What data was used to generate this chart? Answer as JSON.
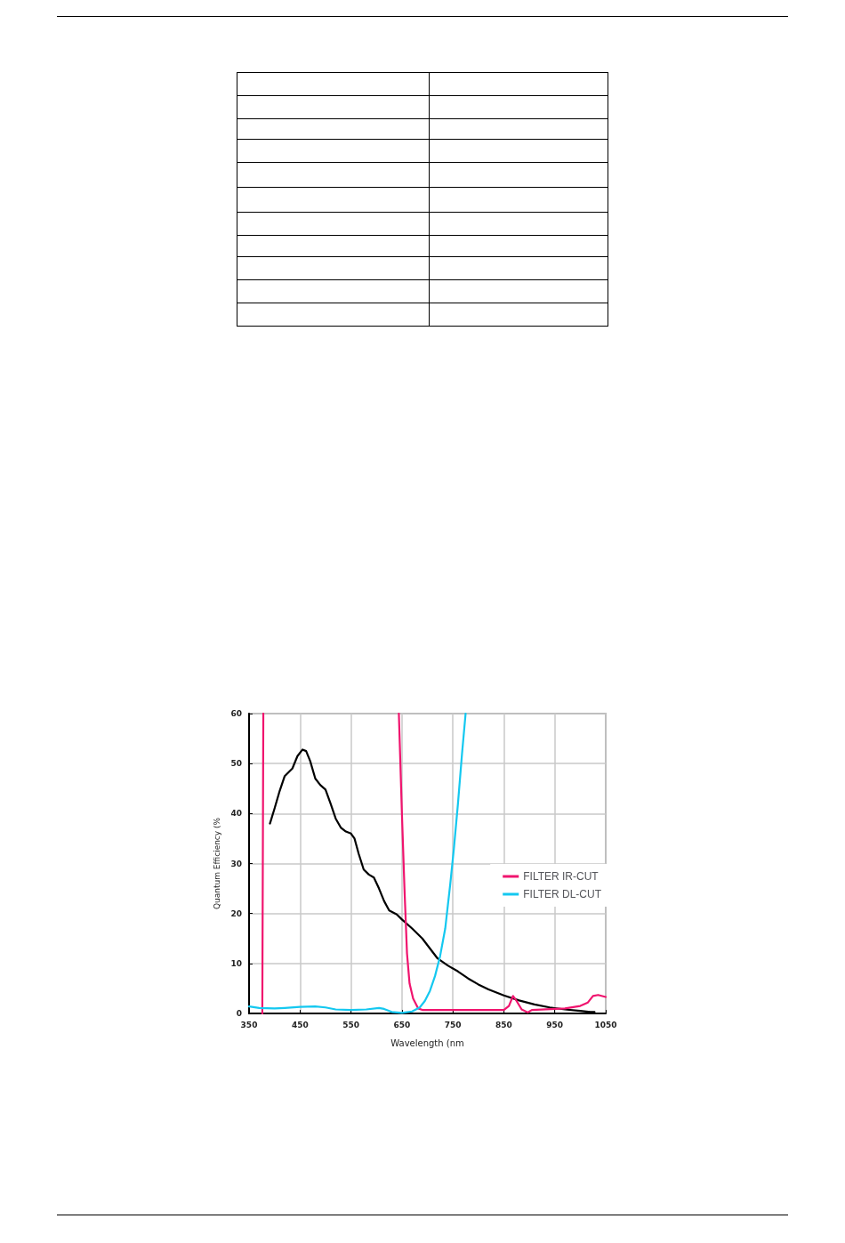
{
  "chart_data": {
    "type": "line",
    "xlabel": "Wavelength (nm",
    "ylabel": "Quantum Efficiency (%",
    "xlim": [
      350,
      1050
    ],
    "xticks": [
      350,
      450,
      550,
      650,
      750,
      850,
      950,
      1050
    ],
    "ylim": [
      0,
      60
    ],
    "yticks": [
      0,
      10,
      20,
      30,
      40,
      50,
      60
    ],
    "grid": true,
    "legend": "right",
    "marker": "none",
    "line_style": "solid",
    "series": [
      {
        "color": "#000000",
        "x": [
          391,
          400,
          410,
          420,
          435,
          445,
          455,
          462,
          470,
          480,
          490,
          500,
          510,
          520,
          530,
          540,
          550,
          557,
          565,
          575,
          585,
          595,
          605,
          615,
          625,
          640,
          650,
          670,
          690,
          705,
          720,
          740,
          760,
          780,
          800,
          820,
          850,
          880,
          910,
          940,
          970,
          1000,
          1020,
          1028
        ],
        "values": [
          38,
          41,
          44.5,
          47.5,
          49,
          51.5,
          52.8,
          52.5,
          50.5,
          47,
          45.7,
          44.8,
          42,
          39,
          37.2,
          36.4,
          36,
          35,
          32,
          28.8,
          27.8,
          27.2,
          25,
          22.5,
          20.6,
          19.8,
          18.8,
          17,
          15,
          13,
          11,
          9.6,
          8.4,
          7,
          5.8,
          4.8,
          3.6,
          2.6,
          1.8,
          1.2,
          0.8,
          0.5,
          0.3,
          0.3
        ]
      },
      {
        "name": "FILTER IR-CUT",
        "color": "#f0146e",
        "x": [
          376,
          378,
          500,
          644,
          650,
          655,
          660,
          665,
          672,
          682,
          690,
          850,
          860,
          868,
          875,
          885,
          897,
          905,
          970,
          1000,
          1015,
          1025,
          1035,
          1050
        ],
        "values": [
          0,
          60,
          null,
          60,
          40,
          25,
          12,
          6,
          3,
          1,
          0.7,
          0.7,
          1.5,
          3.5,
          2.5,
          0.8,
          0.2,
          0.7,
          1,
          1.5,
          2.2,
          3.5,
          3.7,
          3.3
        ]
      },
      {
        "name": "FILTER DL-CUT",
        "color": "#14c8f0",
        "x": [
          350,
          370,
          400,
          420,
          450,
          480,
          500,
          520,
          550,
          580,
          605,
          615,
          630,
          650,
          670,
          685,
          695,
          705,
          715,
          725,
          735,
          745,
          752,
          760,
          768,
          775
        ],
        "values": [
          1.4,
          1.1,
          1,
          1.1,
          1.3,
          1.4,
          1.2,
          0.8,
          0.7,
          0.8,
          1.1,
          0.9,
          0.3,
          0.1,
          0.4,
          1.2,
          2.5,
          4.5,
          7.5,
          11.5,
          17,
          26,
          33,
          42,
          52,
          60
        ]
      }
    ]
  }
}
